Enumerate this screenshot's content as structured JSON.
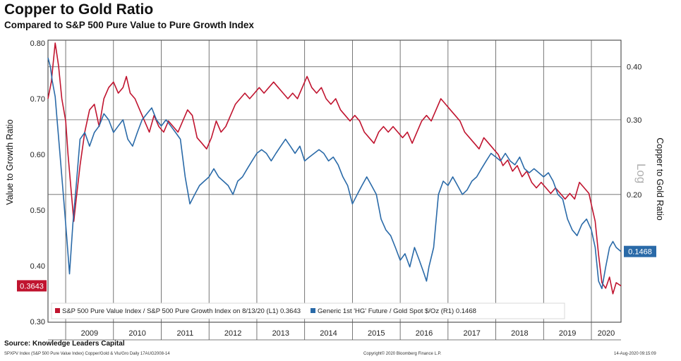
{
  "title": "Copper to Gold Ratio",
  "subtitle": "Compared to S&P 500 Pure Value to Pure Growth Index",
  "footer": {
    "source": "Source: Knowledge Leaders Capital",
    "ticker": "SPXPV Index (S&P 500 Pure Value Index) Copper/Gold & Vlu/Gro  Daily 17AUG2008-14",
    "copyright": "Copyright© 2020 Bloomberg Finance L.P.",
    "timestamp": "14-Aug-2020 09:15:09"
  },
  "chart_data": {
    "type": "line",
    "title": "Copper to Gold Ratio",
    "subtitle": "Compared to S&P 500 Pure Value to Pure Growth Index",
    "x_labels": [
      "2009",
      "2010",
      "2011",
      "2012",
      "2013",
      "2014",
      "2015",
      "2016",
      "2017",
      "2018",
      "2019",
      "2020"
    ],
    "x_range": [
      2008.63,
      2020.62
    ],
    "left_axis": {
      "label": "Value to Growth Ratio",
      "ticks": [
        "0.80",
        "0.70",
        "0.60",
        "0.50",
        "0.40",
        "0.30"
      ],
      "ylim": [
        0.3,
        0.8
      ]
    },
    "right_axis": {
      "label": "Copper to Gold Ratio",
      "scale": "Log",
      "ticks": [
        "0.40",
        "0.30",
        "0.20"
      ]
    },
    "grid": true,
    "legend_position": "bottom",
    "series": [
      {
        "name": "S&P 500 Pure Value Index / S&P 500 Pure Growth Index on 8/13/20 (L1) 0.3643",
        "axis": "left",
        "color": "#c0142f",
        "last_value": "0.3643",
        "points": [
          [
            2008.63,
            0.7
          ],
          [
            2008.7,
            0.73
          ],
          [
            2008.78,
            0.8
          ],
          [
            2008.85,
            0.76
          ],
          [
            2008.92,
            0.7
          ],
          [
            2009.0,
            0.66
          ],
          [
            2009.05,
            0.6
          ],
          [
            2009.1,
            0.55
          ],
          [
            2009.17,
            0.48
          ],
          [
            2009.22,
            0.52
          ],
          [
            2009.3,
            0.58
          ],
          [
            2009.4,
            0.64
          ],
          [
            2009.5,
            0.68
          ],
          [
            2009.6,
            0.69
          ],
          [
            2009.7,
            0.65
          ],
          [
            2009.8,
            0.7
          ],
          [
            2009.9,
            0.72
          ],
          [
            2010.0,
            0.73
          ],
          [
            2010.1,
            0.71
          ],
          [
            2010.2,
            0.72
          ],
          [
            2010.27,
            0.74
          ],
          [
            2010.35,
            0.71
          ],
          [
            2010.45,
            0.7
          ],
          [
            2010.55,
            0.68
          ],
          [
            2010.65,
            0.66
          ],
          [
            2010.75,
            0.64
          ],
          [
            2010.85,
            0.67
          ],
          [
            2010.95,
            0.65
          ],
          [
            2011.05,
            0.64
          ],
          [
            2011.15,
            0.66
          ],
          [
            2011.25,
            0.65
          ],
          [
            2011.35,
            0.64
          ],
          [
            2011.45,
            0.66
          ],
          [
            2011.55,
            0.68
          ],
          [
            2011.65,
            0.67
          ],
          [
            2011.75,
            0.63
          ],
          [
            2011.85,
            0.62
          ],
          [
            2011.95,
            0.61
          ],
          [
            2012.05,
            0.63
          ],
          [
            2012.15,
            0.66
          ],
          [
            2012.25,
            0.64
          ],
          [
            2012.35,
            0.65
          ],
          [
            2012.45,
            0.67
          ],
          [
            2012.55,
            0.69
          ],
          [
            2012.65,
            0.7
          ],
          [
            2012.75,
            0.71
          ],
          [
            2012.85,
            0.7
          ],
          [
            2012.95,
            0.71
          ],
          [
            2013.05,
            0.72
          ],
          [
            2013.15,
            0.71
          ],
          [
            2013.25,
            0.72
          ],
          [
            2013.35,
            0.73
          ],
          [
            2013.45,
            0.72
          ],
          [
            2013.55,
            0.71
          ],
          [
            2013.65,
            0.7
          ],
          [
            2013.75,
            0.71
          ],
          [
            2013.85,
            0.7
          ],
          [
            2013.95,
            0.72
          ],
          [
            2014.05,
            0.74
          ],
          [
            2014.15,
            0.72
          ],
          [
            2014.25,
            0.71
          ],
          [
            2014.35,
            0.72
          ],
          [
            2014.45,
            0.7
          ],
          [
            2014.55,
            0.69
          ],
          [
            2014.65,
            0.7
          ],
          [
            2014.75,
            0.68
          ],
          [
            2014.85,
            0.67
          ],
          [
            2014.95,
            0.66
          ],
          [
            2015.05,
            0.67
          ],
          [
            2015.15,
            0.66
          ],
          [
            2015.25,
            0.64
          ],
          [
            2015.35,
            0.63
          ],
          [
            2015.45,
            0.62
          ],
          [
            2015.55,
            0.64
          ],
          [
            2015.65,
            0.65
          ],
          [
            2015.75,
            0.64
          ],
          [
            2015.85,
            0.65
          ],
          [
            2015.95,
            0.64
          ],
          [
            2016.05,
            0.63
          ],
          [
            2016.15,
            0.64
          ],
          [
            2016.25,
            0.62
          ],
          [
            2016.35,
            0.64
          ],
          [
            2016.45,
            0.66
          ],
          [
            2016.55,
            0.67
          ],
          [
            2016.65,
            0.66
          ],
          [
            2016.75,
            0.68
          ],
          [
            2016.85,
            0.7
          ],
          [
            2016.95,
            0.69
          ],
          [
            2017.05,
            0.68
          ],
          [
            2017.15,
            0.67
          ],
          [
            2017.25,
            0.66
          ],
          [
            2017.35,
            0.64
          ],
          [
            2017.45,
            0.63
          ],
          [
            2017.55,
            0.62
          ],
          [
            2017.65,
            0.61
          ],
          [
            2017.75,
            0.63
          ],
          [
            2017.85,
            0.62
          ],
          [
            2017.95,
            0.61
          ],
          [
            2018.05,
            0.6
          ],
          [
            2018.15,
            0.58
          ],
          [
            2018.25,
            0.59
          ],
          [
            2018.35,
            0.57
          ],
          [
            2018.45,
            0.58
          ],
          [
            2018.55,
            0.56
          ],
          [
            2018.65,
            0.57
          ],
          [
            2018.75,
            0.55
          ],
          [
            2018.85,
            0.54
          ],
          [
            2018.95,
            0.55
          ],
          [
            2019.05,
            0.54
          ],
          [
            2019.15,
            0.53
          ],
          [
            2019.25,
            0.54
          ],
          [
            2019.35,
            0.53
          ],
          [
            2019.45,
            0.52
          ],
          [
            2019.55,
            0.53
          ],
          [
            2019.65,
            0.52
          ],
          [
            2019.75,
            0.55
          ],
          [
            2019.85,
            0.54
          ],
          [
            2019.95,
            0.53
          ],
          [
            2020.0,
            0.51
          ],
          [
            2020.08,
            0.48
          ],
          [
            2020.15,
            0.42
          ],
          [
            2020.22,
            0.37
          ],
          [
            2020.3,
            0.36
          ],
          [
            2020.38,
            0.38
          ],
          [
            2020.45,
            0.35
          ],
          [
            2020.52,
            0.37
          ],
          [
            2020.62,
            0.3643
          ]
        ]
      },
      {
        "name": "Generic 1st 'HG' Future / Gold Spot $/Oz (R1) 0.1468",
        "axis": "right",
        "color": "#2a6aa8",
        "last_value": "0.1468",
        "points": [
          [
            2008.63,
            0.42
          ],
          [
            2008.68,
            0.4
          ],
          [
            2008.72,
            0.37
          ],
          [
            2008.78,
            0.34
          ],
          [
            2008.82,
            0.3
          ],
          [
            2008.88,
            0.25
          ],
          [
            2008.95,
            0.2
          ],
          [
            2009.02,
            0.16
          ],
          [
            2009.08,
            0.13
          ],
          [
            2009.15,
            0.17
          ],
          [
            2009.22,
            0.21
          ],
          [
            2009.3,
            0.27
          ],
          [
            2009.4,
            0.28
          ],
          [
            2009.5,
            0.26
          ],
          [
            2009.6,
            0.28
          ],
          [
            2009.7,
            0.29
          ],
          [
            2009.8,
            0.31
          ],
          [
            2009.9,
            0.3
          ],
          [
            2010.0,
            0.28
          ],
          [
            2010.1,
            0.29
          ],
          [
            2010.2,
            0.3
          ],
          [
            2010.3,
            0.27
          ],
          [
            2010.4,
            0.26
          ],
          [
            2010.5,
            0.28
          ],
          [
            2010.6,
            0.3
          ],
          [
            2010.7,
            0.31
          ],
          [
            2010.8,
            0.32
          ],
          [
            2010.9,
            0.3
          ],
          [
            2011.0,
            0.29
          ],
          [
            2011.1,
            0.3
          ],
          [
            2011.2,
            0.29
          ],
          [
            2011.3,
            0.28
          ],
          [
            2011.4,
            0.27
          ],
          [
            2011.5,
            0.22
          ],
          [
            2011.6,
            0.19
          ],
          [
            2011.7,
            0.2
          ],
          [
            2011.8,
            0.21
          ],
          [
            2011.9,
            0.215
          ],
          [
            2012.0,
            0.22
          ],
          [
            2012.1,
            0.23
          ],
          [
            2012.2,
            0.22
          ],
          [
            2012.3,
            0.215
          ],
          [
            2012.4,
            0.21
          ],
          [
            2012.5,
            0.2
          ],
          [
            2012.6,
            0.215
          ],
          [
            2012.7,
            0.22
          ],
          [
            2012.8,
            0.23
          ],
          [
            2012.9,
            0.24
          ],
          [
            2013.0,
            0.25
          ],
          [
            2013.1,
            0.255
          ],
          [
            2013.2,
            0.25
          ],
          [
            2013.3,
            0.24
          ],
          [
            2013.4,
            0.25
          ],
          [
            2013.5,
            0.26
          ],
          [
            2013.6,
            0.27
          ],
          [
            2013.7,
            0.26
          ],
          [
            2013.8,
            0.25
          ],
          [
            2013.9,
            0.26
          ],
          [
            2014.0,
            0.24
          ],
          [
            2014.1,
            0.245
          ],
          [
            2014.2,
            0.25
          ],
          [
            2014.3,
            0.255
          ],
          [
            2014.4,
            0.25
          ],
          [
            2014.5,
            0.24
          ],
          [
            2014.6,
            0.245
          ],
          [
            2014.7,
            0.235
          ],
          [
            2014.8,
            0.22
          ],
          [
            2014.9,
            0.21
          ],
          [
            2015.0,
            0.19
          ],
          [
            2015.1,
            0.2
          ],
          [
            2015.2,
            0.21
          ],
          [
            2015.3,
            0.22
          ],
          [
            2015.4,
            0.21
          ],
          [
            2015.5,
            0.2
          ],
          [
            2015.6,
            0.175
          ],
          [
            2015.7,
            0.165
          ],
          [
            2015.8,
            0.16
          ],
          [
            2015.9,
            0.15
          ],
          [
            2016.0,
            0.14
          ],
          [
            2016.1,
            0.145
          ],
          [
            2016.2,
            0.135
          ],
          [
            2016.3,
            0.15
          ],
          [
            2016.4,
            0.14
          ],
          [
            2016.5,
            0.13
          ],
          [
            2016.55,
            0.125
          ],
          [
            2016.6,
            0.135
          ],
          [
            2016.7,
            0.15
          ],
          [
            2016.8,
            0.2
          ],
          [
            2016.9,
            0.215
          ],
          [
            2017.0,
            0.21
          ],
          [
            2017.1,
            0.22
          ],
          [
            2017.2,
            0.21
          ],
          [
            2017.3,
            0.2
          ],
          [
            2017.4,
            0.205
          ],
          [
            2017.5,
            0.215
          ],
          [
            2017.6,
            0.22
          ],
          [
            2017.7,
            0.23
          ],
          [
            2017.8,
            0.24
          ],
          [
            2017.9,
            0.25
          ],
          [
            2018.0,
            0.245
          ],
          [
            2018.1,
            0.24
          ],
          [
            2018.2,
            0.25
          ],
          [
            2018.3,
            0.24
          ],
          [
            2018.4,
            0.235
          ],
          [
            2018.5,
            0.245
          ],
          [
            2018.6,
            0.23
          ],
          [
            2018.7,
            0.225
          ],
          [
            2018.8,
            0.23
          ],
          [
            2018.9,
            0.225
          ],
          [
            2019.0,
            0.22
          ],
          [
            2019.1,
            0.225
          ],
          [
            2019.2,
            0.215
          ],
          [
            2019.3,
            0.2
          ],
          [
            2019.4,
            0.195
          ],
          [
            2019.5,
            0.175
          ],
          [
            2019.6,
            0.165
          ],
          [
            2019.7,
            0.16
          ],
          [
            2019.8,
            0.17
          ],
          [
            2019.9,
            0.175
          ],
          [
            2020.0,
            0.165
          ],
          [
            2020.08,
            0.15
          ],
          [
            2020.15,
            0.125
          ],
          [
            2020.22,
            0.12
          ],
          [
            2020.3,
            0.135
          ],
          [
            2020.38,
            0.15
          ],
          [
            2020.45,
            0.155
          ],
          [
            2020.52,
            0.15
          ],
          [
            2020.62,
            0.1468
          ]
        ]
      }
    ]
  }
}
